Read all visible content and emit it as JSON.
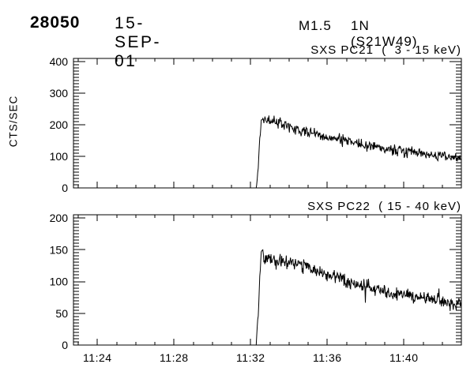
{
  "header": {
    "event_number": "28050",
    "date": "15-SEP-01",
    "goes_class": "M1.5",
    "importance_location": "1N (S21W49)"
  },
  "colors": {
    "background": "#ffffff",
    "foreground": "#000000"
  },
  "x_axis": {
    "unit": "time UT (decimal minutes after 11:00)",
    "range_minutes": [
      22.75,
      43.0
    ],
    "minor_step_minutes": 1,
    "major_ticks": [
      {
        "t": 24,
        "label": "11:24"
      },
      {
        "t": 28,
        "label": "11:28"
      },
      {
        "t": 32,
        "label": "11:32"
      },
      {
        "t": 36,
        "label": "11:36"
      },
      {
        "t": 40,
        "label": "11:40"
      }
    ]
  },
  "chart_data": [
    {
      "type": "line",
      "title": "SXS PC21  (  3 - 15 keV)",
      "ylabel": "CTS/SEC",
      "ylim": [
        0,
        410
      ],
      "yticks": [
        {
          "v": 0,
          "label": "0"
        },
        {
          "v": 100,
          "label": "100"
        },
        {
          "v": 200,
          "label": "200"
        },
        {
          "v": 300,
          "label": "300"
        },
        {
          "v": 400,
          "label": "400"
        }
      ],
      "y_minor_step": 10,
      "show_x_labels": false,
      "grid": false,
      "line_color": "#000000",
      "series": {
        "name": "SXS PC21",
        "noise_amp": 17,
        "flare_onset_minute": 32.3,
        "envelope": [
          [
            22.75,
            0
          ],
          [
            32.28,
            0
          ],
          [
            32.36,
            40
          ],
          [
            32.46,
            150
          ],
          [
            32.55,
            212
          ],
          [
            32.65,
            220
          ],
          [
            32.9,
            214
          ],
          [
            33.2,
            212
          ],
          [
            33.6,
            200
          ],
          [
            34.0,
            190
          ],
          [
            34.5,
            184
          ],
          [
            35.0,
            178
          ],
          [
            35.5,
            170
          ],
          [
            36.0,
            160
          ],
          [
            36.4,
            158
          ],
          [
            36.7,
            151
          ],
          [
            37.0,
            149
          ],
          [
            37.5,
            143
          ],
          [
            38.0,
            138
          ],
          [
            38.5,
            131
          ],
          [
            39.0,
            127
          ],
          [
            39.5,
            121
          ],
          [
            40.0,
            116
          ],
          [
            40.5,
            111
          ],
          [
            41.0,
            107
          ],
          [
            41.5,
            103
          ],
          [
            42.0,
            100
          ],
          [
            42.5,
            97
          ],
          [
            43.0,
            94
          ]
        ]
      }
    },
    {
      "type": "line",
      "title": "SXS PC22  ( 15 - 40 keV)",
      "ylabel": "",
      "ylim": [
        0,
        205
      ],
      "yticks": [
        {
          "v": 0,
          "label": "0"
        },
        {
          "v": 50,
          "label": "50"
        },
        {
          "v": 100,
          "label": "100"
        },
        {
          "v": 150,
          "label": "150"
        },
        {
          "v": 200,
          "label": "200"
        }
      ],
      "y_minor_step": 5,
      "show_x_labels": true,
      "grid": false,
      "line_color": "#000000",
      "series": {
        "name": "SXS PC22",
        "noise_amp": 10,
        "flare_onset_minute": 32.3,
        "envelope": [
          [
            22.75,
            0
          ],
          [
            32.28,
            0
          ],
          [
            32.4,
            50
          ],
          [
            32.5,
            125
          ],
          [
            32.58,
            152
          ],
          [
            32.72,
            137
          ],
          [
            33.0,
            136
          ],
          [
            33.4,
            134
          ],
          [
            33.8,
            131
          ],
          [
            34.2,
            129
          ],
          [
            34.6,
            126
          ],
          [
            35.0,
            121
          ],
          [
            35.4,
            117
          ],
          [
            36.0,
            111
          ],
          [
            36.5,
            106
          ],
          [
            37.0,
            101
          ],
          [
            37.5,
            97
          ],
          [
            38.0,
            92
          ],
          [
            38.5,
            88
          ],
          [
            39.0,
            85
          ],
          [
            39.5,
            81
          ],
          [
            40.0,
            80
          ],
          [
            40.5,
            75
          ],
          [
            41.0,
            72
          ],
          [
            41.5,
            70
          ],
          [
            42.0,
            67
          ],
          [
            42.4,
            64
          ],
          [
            42.7,
            59
          ],
          [
            42.85,
            68
          ],
          [
            43.0,
            64
          ]
        ]
      }
    }
  ]
}
